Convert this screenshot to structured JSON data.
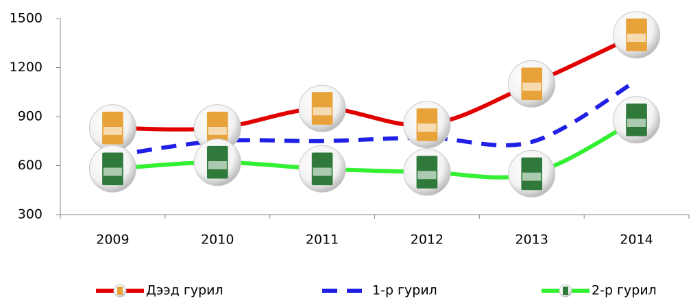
{
  "chart_data": {
    "type": "line",
    "categories": [
      "2009",
      "2010",
      "2011",
      "2012",
      "2013",
      "2014"
    ],
    "series": [
      {
        "name": "Дээд гурил",
        "color": "#e00000",
        "marker": "#e8a23a",
        "values": [
          830,
          830,
          950,
          850,
          1100,
          1400
        ]
      },
      {
        "name": "1-р гурил",
        "color": "#1f1fe6",
        "dashed": true,
        "values": [
          660,
          750,
          750,
          770,
          745,
          1120
        ]
      },
      {
        "name": "2-р гурил",
        "color": "#33f033",
        "marker": "#2f7a3a",
        "values": [
          580,
          620,
          580,
          560,
          550,
          880
        ]
      }
    ],
    "ylim": [
      300,
      1500
    ],
    "yticks": [
      300,
      600,
      900,
      1200,
      1500
    ]
  }
}
